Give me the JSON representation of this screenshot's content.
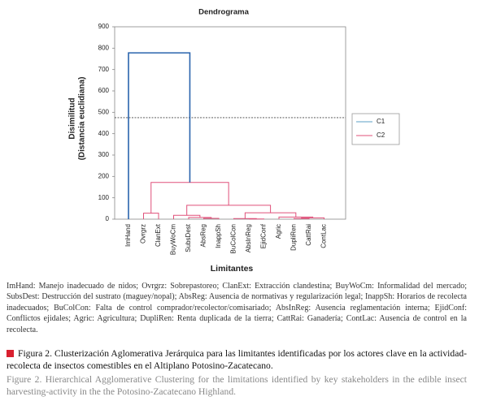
{
  "chart_data": {
    "type": "dendrogram",
    "title": "Dendrograma",
    "y_label": [
      "Disimilitud",
      "(Distancia euclidiana)"
    ],
    "x_label": "Limitantes",
    "ylim": [
      0,
      900
    ],
    "yticks": [
      0,
      100,
      200,
      300,
      400,
      500,
      600,
      700,
      800,
      900
    ],
    "threshold": 475,
    "series": [
      {
        "name": "C1",
        "color": "#5b9fc4"
      },
      {
        "name": "C2",
        "color": "#e0507a"
      }
    ],
    "tree": {
      "height": 778,
      "color": "#2a64ad",
      "children": [
        {
          "label": "ImHand"
        },
        {
          "height": 172,
          "color": "#e0507a",
          "children": [
            {
              "height": 28,
              "color": "#e0507a",
              "children": [
                {
                  "label": "Ovrgrz"
                },
                {
                  "label": "ClanExt"
                }
              ]
            },
            {
              "height": 65,
              "color": "#e0507a",
              "children": [
                {
                  "height": 18,
                  "color": "#e0507a",
                  "children": [
                    {
                      "label": "BuyWoCm"
                    },
                    {
                      "height": 8,
                      "color": "#e0507a",
                      "children": [
                        {
                          "label": "SubsDest"
                        },
                        {
                          "height": 4,
                          "color": "#e0507a",
                          "children": [
                            {
                              "label": "AbsReg"
                            },
                            {
                              "label": "InappSh"
                            }
                          ]
                        }
                      ]
                    }
                  ]
                },
                {
                  "height": 30,
                  "color": "#e0507a",
                  "children": [
                    {
                      "height": 3,
                      "color": "#e0507a",
                      "children": [
                        {
                          "label": "BuColCon"
                        },
                        {
                          "height": 1,
                          "color": "#e0507a",
                          "children": [
                            {
                              "label": "AbsInReg"
                            },
                            {
                              "label": "EjidConf"
                            }
                          ]
                        }
                      ]
                    },
                    {
                      "height": 10,
                      "color": "#e0507a",
                      "children": [
                        {
                          "label": "Agric"
                        },
                        {
                          "height": 6,
                          "color": "#e0507a",
                          "children": [
                            {
                              "height": 3,
                              "color": "#e0507a",
                              "children": [
                                {
                                  "label": "DupliRen"
                                },
                                {
                                  "label": "CattRai"
                                }
                              ]
                            },
                            {
                              "label": "ContLac"
                            }
                          ]
                        }
                      ]
                    }
                  ]
                }
              ]
            }
          ]
        }
      ]
    }
  },
  "caption": {
    "abbreviations": "ImHand: Manejo inadecuado de nidos; Ovrgrz: Sobrepastoreo; ClanExt: Extracción clandestina; BuyWoCm: Informalidad del mercado; SubsDest: Destrucción del sustrato (maguey/nopal); AbsReg: Ausencia de normativas y regularización legal; InappSh: Horarios de recolecta inadecuados; BuColCon: Falta de control comprador/recolector/comisariado; AbsInReg: Ausencia reglamentación interna; EjidConf: Conflictos ejidales; Agric: Agricultura; DupliRen: Renta duplicada de la tierra; CattRai: Ganadería; ContLac: Ausencia de control en la recolecta.",
    "spanish": "Figura 2. Clusterización Aglomerativa Jerárquica para las limitantes identificadas por los actores clave en la actividad-recolecta de insectos comestibles en el Altiplano Potosino-Zacatecano.",
    "english": "Figure 2. Hierarchical Agglomerative Clustering for the limitations identified by key stakeholders in the edible insect harvesting-activity in the the Potosino-Zacatecano Highland."
  }
}
